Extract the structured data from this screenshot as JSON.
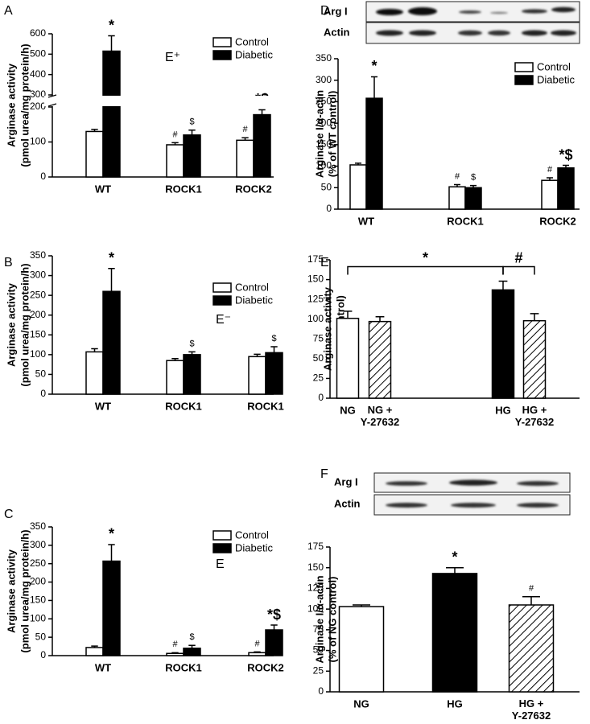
{
  "chart_data": [
    {
      "type": "bar",
      "panel": "A",
      "annotation": "E⁺",
      "ylabel": [
        "Arginase activity",
        "(pmol urea/mg protein/h)"
      ],
      "categories": [
        "WT",
        "ROCK1",
        "ROCK2"
      ],
      "ylim": [
        0,
        600
      ],
      "yticks": [
        0,
        100,
        200,
        300,
        400,
        500,
        600
      ],
      "axis_break": [
        200,
        300
      ],
      "legend": "upper right",
      "series": [
        {
          "name": "Control",
          "color": "#ffffff",
          "values": [
            130,
            92,
            105
          ],
          "errors": [
            6,
            6,
            7
          ],
          "markers": [
            null,
            "#",
            "#"
          ]
        },
        {
          "name": "Diabetic",
          "color": "#000000",
          "values": [
            515,
            120,
            178
          ],
          "errors": [
            75,
            14,
            14
          ],
          "markers": [
            "*",
            "$",
            "*$"
          ]
        }
      ]
    },
    {
      "type": "bar",
      "panel": "B",
      "annotation": "E⁻",
      "ylabel": [
        "Arginase activity",
        "(pmol urea/mg protein/h)"
      ],
      "categories": [
        "WT",
        "ROCK1",
        "ROCK1"
      ],
      "ylim": [
        0,
        350
      ],
      "yticks": [
        0,
        50,
        100,
        150,
        200,
        250,
        300,
        350
      ],
      "legend": "upper right",
      "series": [
        {
          "name": "Control",
          "color": "#ffffff",
          "values": [
            107,
            85,
            95
          ],
          "errors": [
            8,
            5,
            6
          ],
          "markers": [
            null,
            null,
            null
          ]
        },
        {
          "name": "Diabetic",
          "color": "#000000",
          "values": [
            260,
            100,
            105
          ],
          "errors": [
            58,
            7,
            15
          ],
          "markers": [
            "*",
            "$",
            "$"
          ]
        }
      ]
    },
    {
      "type": "bar",
      "panel": "C",
      "annotation": "E",
      "ylabel": [
        "Arginase activity",
        "(pmol urea/mg protein/h)"
      ],
      "categories": [
        "WT",
        "ROCK1",
        "ROCK2"
      ],
      "ylim": [
        0,
        350
      ],
      "yticks": [
        0,
        50,
        100,
        150,
        200,
        250,
        300,
        350
      ],
      "legend": "upper right",
      "series": [
        {
          "name": "Control",
          "color": "#ffffff",
          "values": [
            22,
            6,
            8
          ],
          "errors": [
            4,
            2,
            2
          ],
          "markers": [
            null,
            "#",
            "#"
          ]
        },
        {
          "name": "Diabetic",
          "color": "#000000",
          "values": [
            257,
            20,
            70
          ],
          "errors": [
            45,
            8,
            13
          ],
          "markers": [
            "*",
            "$",
            "*$"
          ]
        }
      ]
    },
    {
      "type": "bar",
      "panel": "D",
      "blot_labels": [
        "Arg I",
        "Actin"
      ],
      "ylabel": [
        "Arginase I/α-actin",
        "(% of WT control)"
      ],
      "categories": [
        "WT",
        "ROCK1",
        "ROCK2"
      ],
      "ylim": [
        0,
        350
      ],
      "yticks": [
        0,
        50,
        100,
        150,
        200,
        250,
        300,
        350
      ],
      "legend": "upper right",
      "series": [
        {
          "name": "Control",
          "color": "#ffffff",
          "values": [
            103,
            52,
            67
          ],
          "errors": [
            4,
            5,
            6
          ],
          "markers": [
            null,
            "#",
            "#"
          ]
        },
        {
          "name": "Diabetic",
          "color": "#000000",
          "values": [
            258,
            50,
            96
          ],
          "errors": [
            50,
            5,
            6
          ],
          "markers": [
            "*",
            "$",
            "*$"
          ]
        }
      ]
    },
    {
      "type": "bar",
      "panel": "E",
      "ylabel": [
        "Arginase activity",
        "(% of control)"
      ],
      "categories": [
        "NG",
        "NG +\nY-27632",
        "HG",
        "HG +\nY-27632"
      ],
      "ylim": [
        0,
        175
      ],
      "yticks": [
        0,
        25,
        50,
        75,
        100,
        125,
        150,
        175
      ],
      "series": [
        {
          "colors": [
            "#ffffff",
            "#ffffff",
            "#000000",
            "#ffffff"
          ],
          "hatched": [
            false,
            true,
            false,
            true
          ],
          "values": [
            101,
            97,
            137,
            98
          ],
          "errors": [
            9,
            6,
            11,
            9
          ]
        }
      ],
      "brackets": [
        {
          "from": "NG",
          "to": "HG",
          "label": "*"
        },
        {
          "from": "HG",
          "to": "HG +\nY-27632",
          "label": "#"
        }
      ]
    },
    {
      "type": "bar",
      "panel": "F",
      "blot_labels": [
        "Arg I",
        "Actin"
      ],
      "ylabel": [
        "Arginase I/α-actin",
        "(% of NG control)"
      ],
      "categories": [
        "NG",
        "HG",
        "HG +\nY-27632"
      ],
      "ylim": [
        0,
        175
      ],
      "yticks": [
        0,
        25,
        50,
        75,
        100,
        125,
        150,
        175
      ],
      "series": [
        {
          "colors": [
            "#ffffff",
            "#000000",
            "#ffffff"
          ],
          "hatched": [
            false,
            false,
            true
          ],
          "values": [
            103,
            143,
            105
          ],
          "errors": [
            2,
            7,
            10
          ],
          "markers": [
            null,
            "*",
            "#"
          ]
        }
      ]
    }
  ]
}
